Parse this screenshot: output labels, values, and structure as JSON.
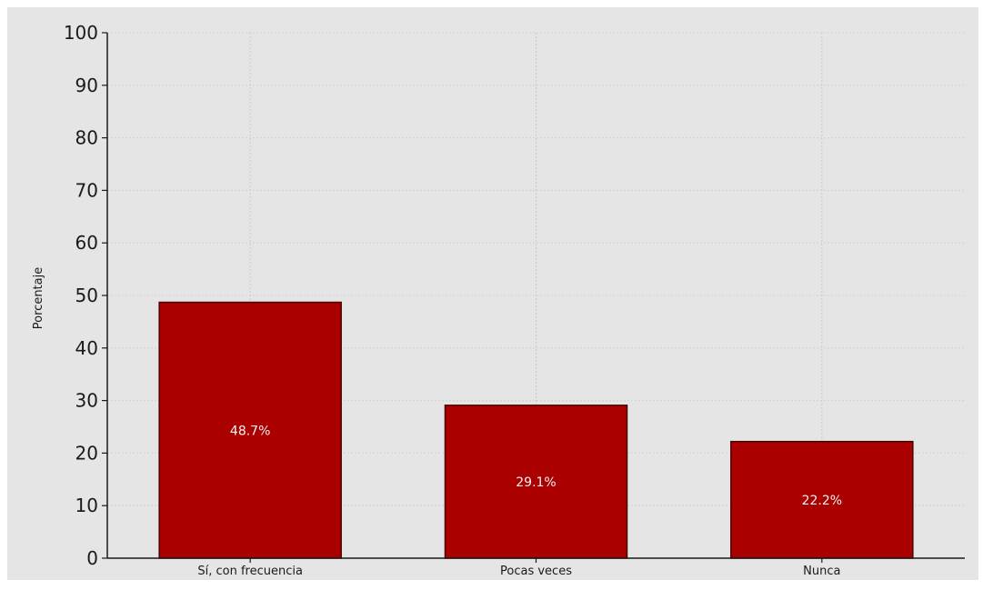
{
  "chart_data": {
    "type": "bar",
    "title": "",
    "xlabel": "",
    "ylabel": "Porcentaje",
    "categories": [
      "Sí, con frecuencia",
      "Pocas veces",
      "Nunca"
    ],
    "values": [
      48.7,
      29.1,
      22.2
    ],
    "data_labels": [
      "48.7%",
      "29.1%",
      "22.2%"
    ],
    "ylim": [
      0,
      100
    ],
    "yticks": [
      0,
      10,
      20,
      30,
      40,
      50,
      60,
      70,
      80,
      90,
      100
    ],
    "grid": true,
    "legend": "none",
    "colors": {
      "bar": "#aa0000",
      "bar_edge": "#4a0000",
      "background": "#e5e5e5",
      "grid": "#c8c8c8"
    }
  }
}
